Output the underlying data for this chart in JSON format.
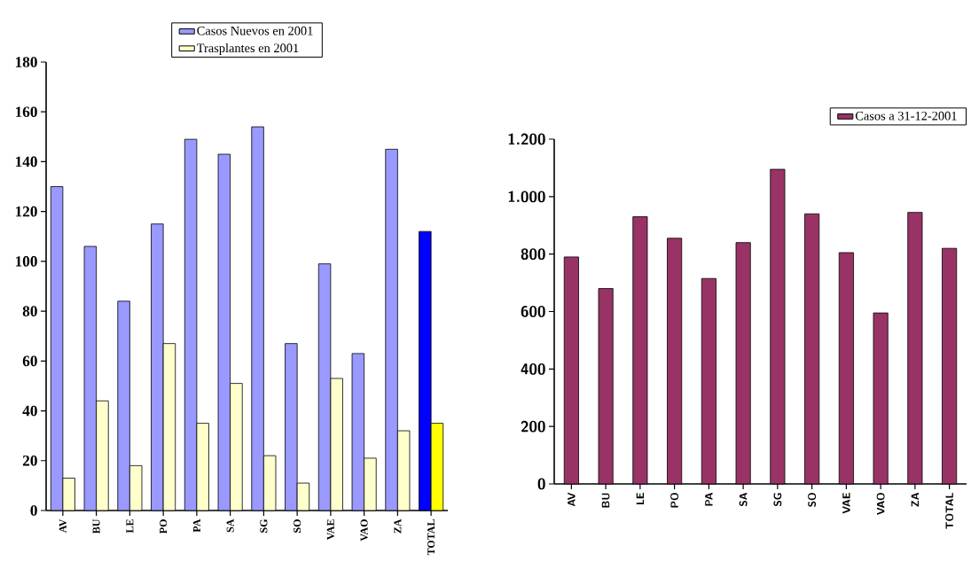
{
  "chart_data": [
    {
      "type": "bar",
      "categories": [
        "AV",
        "BU",
        "LE",
        "PO",
        "PA",
        "SA",
        "SG",
        "SO",
        "VAE",
        "VAO",
        "ZA",
        "TOTAL"
      ],
      "series": [
        {
          "name": "Casos Nuevos en 2001",
          "color": "#9999ff",
          "colors": [
            "#9999ff",
            "#9999ff",
            "#9999ff",
            "#9999ff",
            "#9999ff",
            "#9999ff",
            "#9999ff",
            "#9999ff",
            "#9999ff",
            "#9999ff",
            "#9999ff",
            "#0000ff"
          ],
          "values": [
            130,
            106,
            84,
            115,
            149,
            143,
            154,
            67,
            99,
            63,
            145,
            112
          ]
        },
        {
          "name": "Trasplantes en 2001",
          "color": "#ffffcc",
          "colors": [
            "#ffffcc",
            "#ffffcc",
            "#ffffcc",
            "#ffffcc",
            "#ffffcc",
            "#ffffcc",
            "#ffffcc",
            "#ffffcc",
            "#ffffcc",
            "#ffffcc",
            "#ffffcc",
            "#ffff00"
          ],
          "values": [
            13,
            44,
            18,
            67,
            35,
            51,
            22,
            11,
            53,
            21,
            32,
            35
          ]
        }
      ],
      "ylim": [
        0,
        180
      ],
      "yticks": [
        0,
        20,
        40,
        60,
        80,
        100,
        120,
        140,
        160,
        180
      ],
      "legend": "top"
    },
    {
      "type": "bar",
      "categories": [
        "AV",
        "BU",
        "LE",
        "PO",
        "PA",
        "SA",
        "SG",
        "SO",
        "VAE",
        "VAO",
        "ZA",
        "TOTAL"
      ],
      "series": [
        {
          "name": "Casos a 31-12-2001",
          "color": "#993366",
          "values": [
            790,
            680,
            930,
            855,
            715,
            840,
            1095,
            940,
            805,
            595,
            945,
            820
          ]
        }
      ],
      "ylim": [
        0,
        1200
      ],
      "yticks": [
        0,
        200,
        400,
        600,
        800,
        {
          "value": 1000,
          "label": "1.000"
        },
        {
          "value": 1200,
          "label": "1.200"
        }
      ],
      "legend": "top right"
    }
  ]
}
